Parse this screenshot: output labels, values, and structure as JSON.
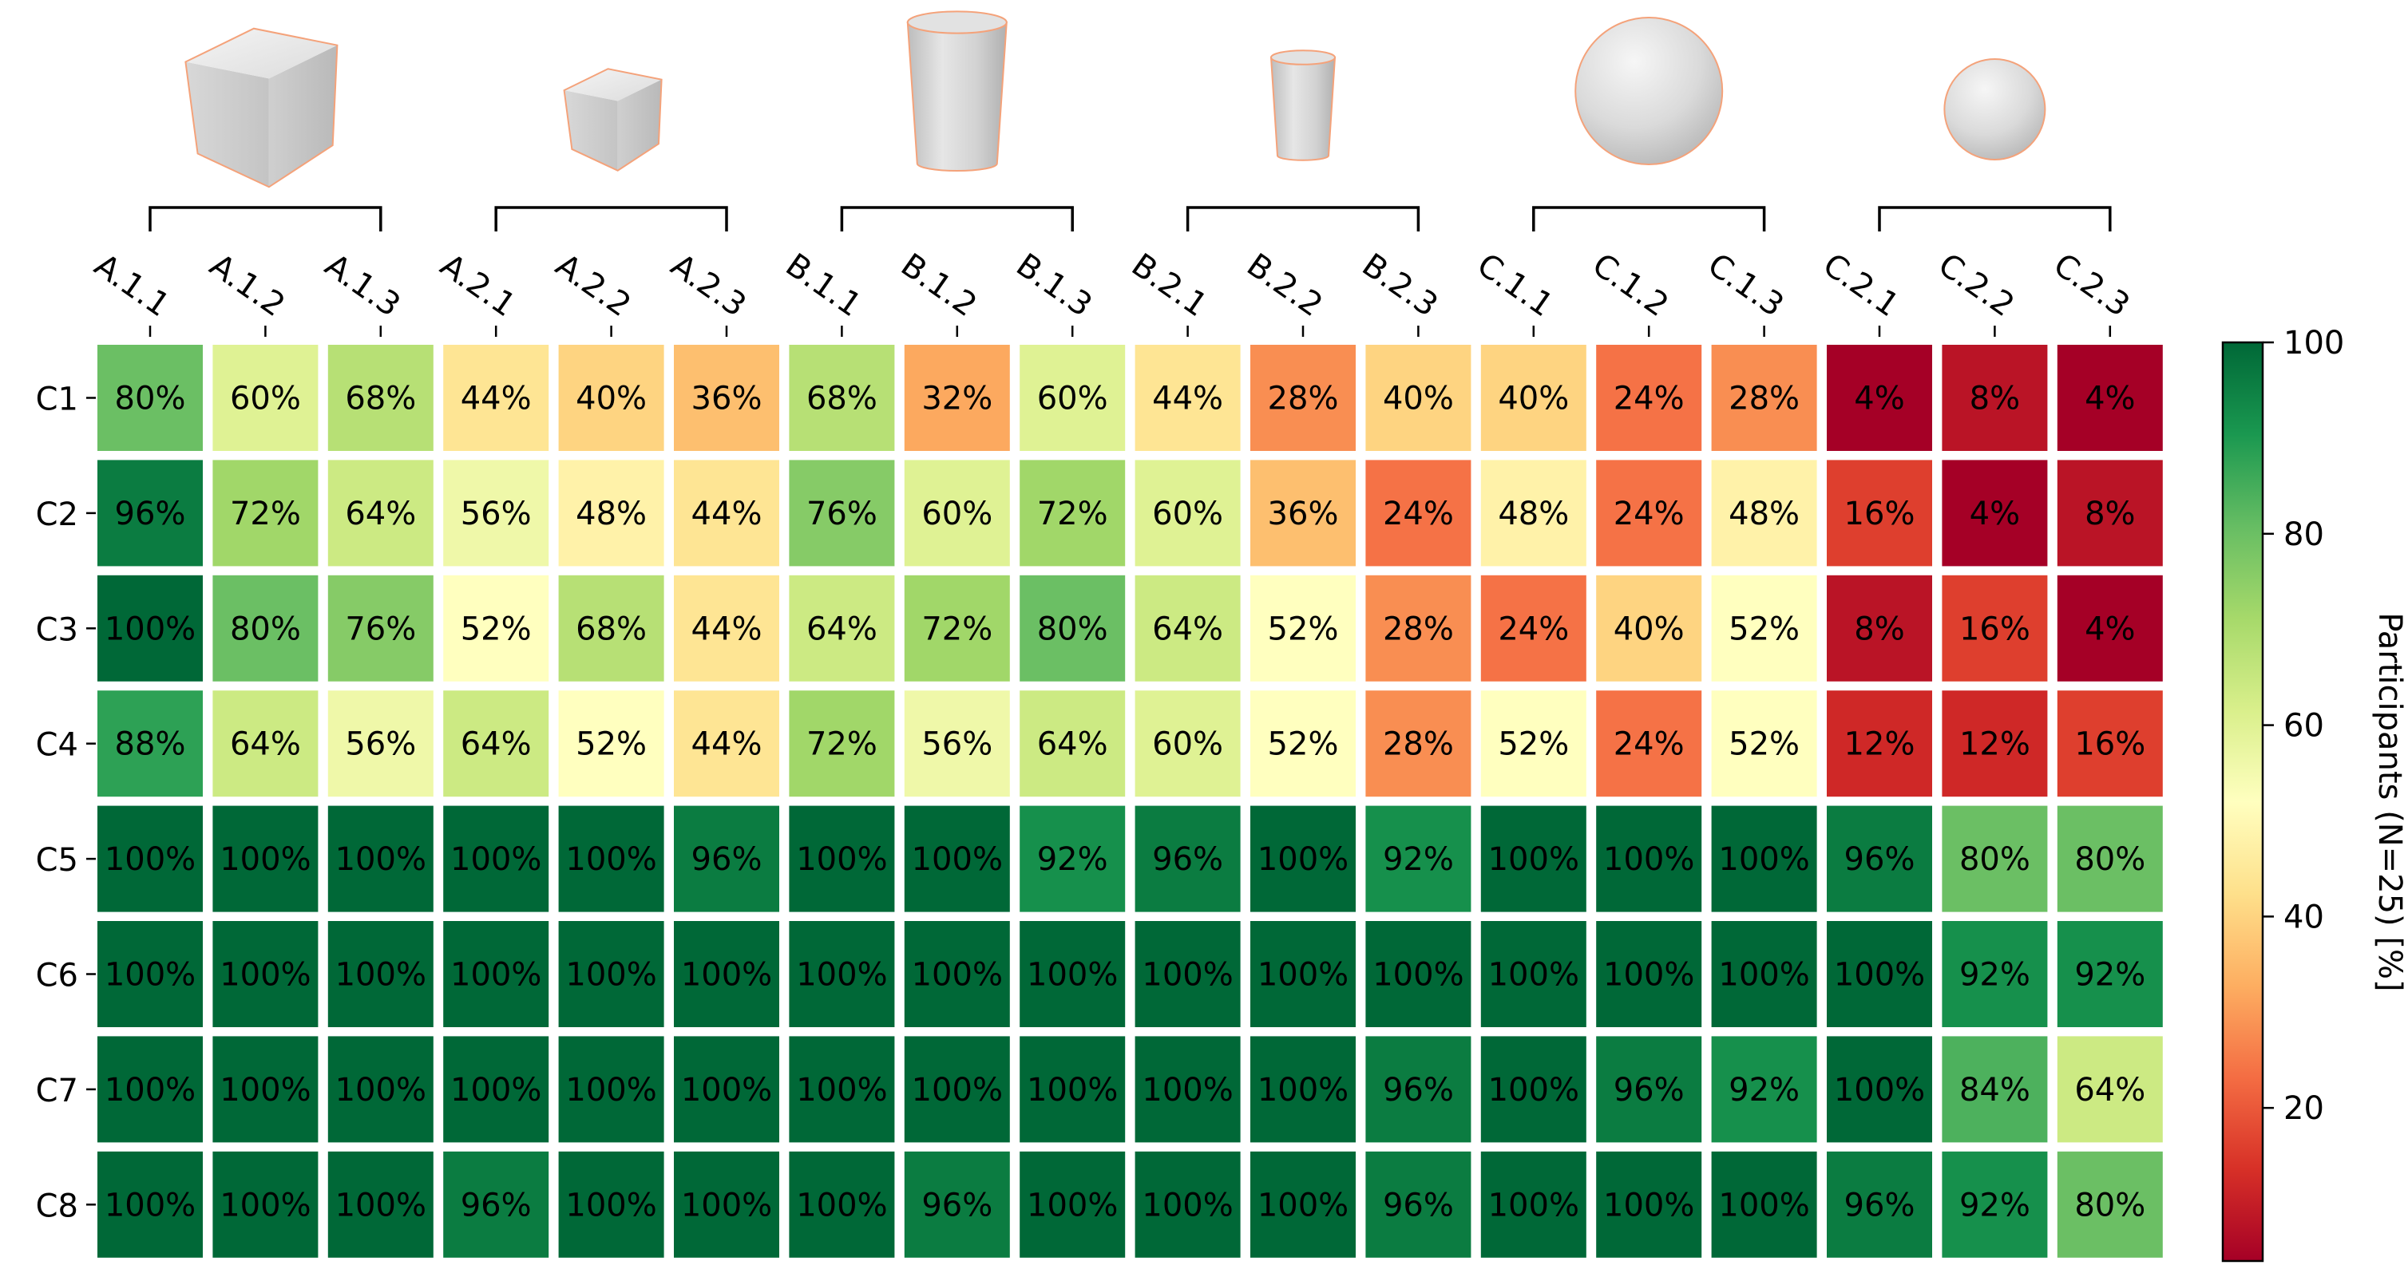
{
  "chart_data": {
    "type": "heatmap",
    "columns": [
      "A.1.1",
      "A.1.2",
      "A.1.3",
      "A.2.1",
      "A.2.2",
      "A.2.3",
      "B.1.1",
      "B.1.2",
      "B.1.3",
      "B.2.1",
      "B.2.2",
      "B.2.3",
      "C.1.1",
      "C.1.2",
      "C.1.3",
      "C.2.1",
      "C.2.2",
      "C.2.3"
    ],
    "rows": [
      "C1",
      "C2",
      "C3",
      "C4",
      "C5",
      "C6",
      "C7",
      "C8"
    ],
    "values": [
      [
        80,
        60,
        68,
        44,
        40,
        36,
        68,
        32,
        60,
        44,
        28,
        40,
        40,
        24,
        28,
        4,
        8,
        4
      ],
      [
        96,
        72,
        64,
        56,
        48,
        44,
        76,
        60,
        72,
        60,
        36,
        24,
        48,
        24,
        48,
        16,
        4,
        8
      ],
      [
        100,
        80,
        76,
        52,
        68,
        44,
        64,
        72,
        80,
        64,
        52,
        28,
        24,
        40,
        52,
        8,
        16,
        4
      ],
      [
        88,
        64,
        56,
        64,
        52,
        44,
        72,
        56,
        64,
        60,
        52,
        28,
        52,
        24,
        52,
        12,
        12,
        16
      ],
      [
        100,
        100,
        100,
        100,
        100,
        96,
        100,
        100,
        92,
        96,
        100,
        92,
        100,
        100,
        100,
        96,
        80,
        80
      ],
      [
        100,
        100,
        100,
        100,
        100,
        100,
        100,
        100,
        100,
        100,
        100,
        100,
        100,
        100,
        100,
        100,
        92,
        92
      ],
      [
        100,
        100,
        100,
        100,
        100,
        100,
        100,
        100,
        100,
        100,
        100,
        96,
        100,
        96,
        92,
        100,
        84,
        64
      ],
      [
        100,
        100,
        100,
        96,
        100,
        100,
        100,
        96,
        100,
        100,
        100,
        96,
        100,
        100,
        100,
        96,
        92,
        80
      ]
    ],
    "value_suffix": "%",
    "shape_groups": [
      {
        "shape": "cube-icon",
        "size": "large",
        "columns": [
          "A.1.1",
          "A.1.2",
          "A.1.3"
        ]
      },
      {
        "shape": "cube-icon",
        "size": "small",
        "columns": [
          "A.2.1",
          "A.2.2",
          "A.2.3"
        ]
      },
      {
        "shape": "cylinder-icon",
        "size": "large",
        "columns": [
          "B.1.1",
          "B.1.2",
          "B.1.3"
        ]
      },
      {
        "shape": "cylinder-icon",
        "size": "small",
        "columns": [
          "B.2.1",
          "B.2.2",
          "B.2.3"
        ]
      },
      {
        "shape": "sphere-icon",
        "size": "large",
        "columns": [
          "C.1.1",
          "C.1.2",
          "C.1.3"
        ]
      },
      {
        "shape": "sphere-icon",
        "size": "small",
        "columns": [
          "C.2.1",
          "C.2.2",
          "C.2.3"
        ]
      }
    ],
    "colorbar": {
      "label": "Participants (N=25) [%]",
      "range": [
        4,
        100
      ],
      "ticks": [
        20,
        40,
        60,
        80,
        100
      ],
      "colormap": "RdYlGn"
    }
  }
}
